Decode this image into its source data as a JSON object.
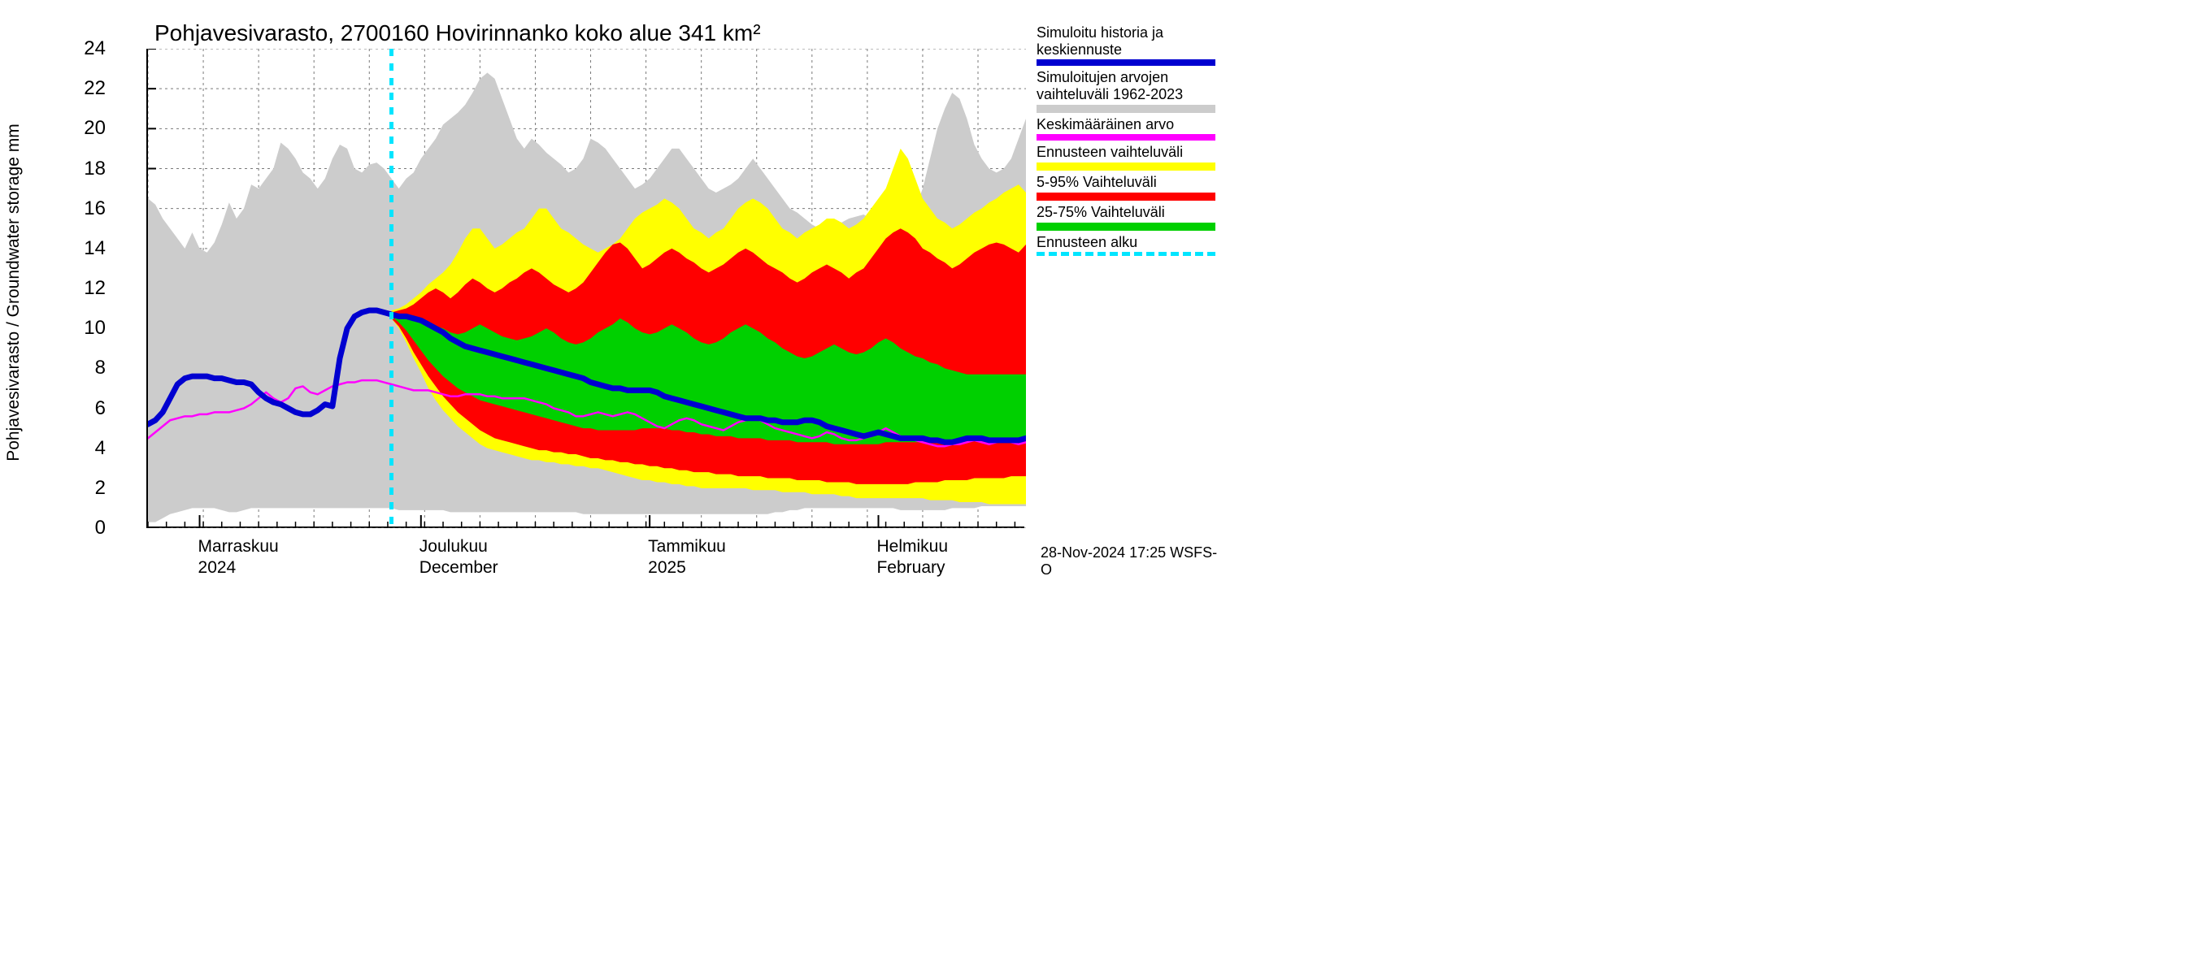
{
  "chart": {
    "type": "line-band",
    "title": "Pohjavesivarasto, 2700160 Hovirinnanko koko alue 341 km²",
    "y_axis_label": "Pohjavesivarasto / Groundwater storage    mm",
    "title_fontsize": 28,
    "label_fontsize": 21,
    "tick_fontsize": 24,
    "background_color": "#ffffff",
    "grid_color": "#7a7a7a",
    "grid_dash": "3,4",
    "y": {
      "min": 0,
      "max": 24,
      "ticks": [
        0,
        2,
        4,
        6,
        8,
        10,
        12,
        14,
        16,
        18,
        20,
        22,
        24
      ]
    },
    "x": {
      "n_days": 120,
      "minor_tick_every": 2.5,
      "major_breaks": [
        7,
        37,
        68,
        99
      ],
      "month_labels": [
        {
          "line1": "Marraskuu",
          "line2": "2024",
          "day": 7
        },
        {
          "line1": "Joulukuu",
          "line2": "December",
          "day": 37
        },
        {
          "line1": "Tammikuu",
          "line2": "2025",
          "day": 68
        },
        {
          "line1": "Helmikuu",
          "line2": "February",
          "day": 99
        }
      ]
    },
    "forecast_start_day": 33,
    "colors": {
      "blue": "#0000d0",
      "gray_band": "#cccccc",
      "magenta": "#ff00ff",
      "yellow": "#ffff00",
      "red": "#ff0000",
      "green": "#00d000",
      "cyan": "#00e5ff"
    },
    "line_widths": {
      "blue": 7,
      "magenta": 2.5,
      "cyan": 5
    },
    "bands": {
      "gray_upper": [
        16.5,
        16.2,
        15.5,
        15,
        14.5,
        14,
        14.8,
        14,
        13.8,
        14.3,
        15.2,
        16.3,
        15.5,
        16,
        17.2,
        17,
        17.5,
        18,
        19.3,
        19,
        18.5,
        17.8,
        17.5,
        17,
        17.5,
        18.5,
        19.2,
        19,
        18,
        17.8,
        18.2,
        18.3,
        18,
        17.5,
        17,
        17.5,
        17.8,
        18.5,
        19,
        19.5,
        20.2,
        20.5,
        20.8,
        21.2,
        21.8,
        22.5,
        22.8,
        22.5,
        21.5,
        20.5,
        19.5,
        19,
        19.5,
        19.2,
        18.8,
        18.5,
        18.2,
        17.8,
        18,
        18.5,
        19.5,
        19.3,
        19,
        18.5,
        18,
        17.5,
        17,
        17.2,
        17.5,
        18,
        18.5,
        19,
        19,
        18.5,
        18,
        17.5,
        17,
        16.8,
        17,
        17.2,
        17.5,
        18,
        18.5,
        18,
        17.5,
        17,
        16.5,
        16,
        15.8,
        15.5,
        15.2,
        15,
        14.8,
        15,
        15.3,
        15.5,
        15.6,
        15.7,
        15.5,
        15.3,
        15.2,
        15,
        15.2,
        15.5,
        16,
        17,
        18.5,
        20,
        21,
        21.8,
        21.5,
        20.5,
        19.2,
        18.5,
        18,
        17.8,
        18,
        18.5,
        19.5,
        20.5
      ],
      "gray_lower": [
        0.3,
        0.3,
        0.5,
        0.7,
        0.8,
        0.9,
        1,
        1,
        1,
        1,
        0.9,
        0.8,
        0.8,
        0.9,
        1,
        1,
        1,
        1,
        1,
        1,
        1,
        1,
        1,
        1,
        1,
        1,
        1,
        1,
        1,
        1,
        1,
        1,
        1,
        1,
        0.9,
        0.9,
        0.9,
        0.9,
        0.9,
        0.9,
        0.9,
        0.8,
        0.8,
        0.8,
        0.8,
        0.8,
        0.8,
        0.8,
        0.8,
        0.8,
        0.8,
        0.8,
        0.8,
        0.8,
        0.8,
        0.8,
        0.8,
        0.8,
        0.8,
        0.7,
        0.7,
        0.7,
        0.7,
        0.7,
        0.7,
        0.7,
        0.7,
        0.7,
        0.7,
        0.7,
        0.7,
        0.7,
        0.7,
        0.7,
        0.7,
        0.7,
        0.7,
        0.7,
        0.7,
        0.7,
        0.7,
        0.7,
        0.7,
        0.7,
        0.7,
        0.8,
        0.8,
        0.9,
        0.9,
        1,
        1,
        1,
        1,
        1,
        1,
        1,
        1,
        1,
        1,
        1,
        1,
        1,
        0.9,
        0.9,
        0.9,
        0.9,
        0.9,
        0.9,
        0.9,
        1,
        1,
        1,
        1,
        1.1,
        1.1,
        1.1,
        1.1,
        1.1,
        1.1,
        1.1
      ],
      "yellow_upper": [
        null,
        null,
        null,
        null,
        null,
        null,
        null,
        null,
        null,
        null,
        null,
        null,
        null,
        null,
        null,
        null,
        null,
        null,
        null,
        null,
        null,
        null,
        null,
        null,
        null,
        null,
        null,
        null,
        null,
        null,
        null,
        null,
        null,
        10.9,
        11,
        11.2,
        11.5,
        11.8,
        12.2,
        12.5,
        12.8,
        13.2,
        13.8,
        14.5,
        15,
        15,
        14.5,
        14,
        14.2,
        14.5,
        14.8,
        15,
        15.5,
        16,
        16,
        15.5,
        15,
        14.8,
        14.5,
        14.2,
        14,
        13.8,
        14,
        14.2,
        14.5,
        15,
        15.5,
        15.8,
        16,
        16.2,
        16.5,
        16.3,
        16,
        15.5,
        15,
        14.8,
        14.5,
        14.8,
        15,
        15.5,
        16,
        16.3,
        16.5,
        16.3,
        16,
        15.5,
        15,
        14.8,
        14.5,
        14.8,
        15,
        15.2,
        15.5,
        15.5,
        15.3,
        15,
        15.2,
        15.5,
        16,
        16.5,
        17,
        18,
        19,
        18.5,
        17.5,
        16.5,
        16,
        15.5,
        15.3,
        15,
        15.2,
        15.5,
        15.8,
        16,
        16.3,
        16.5,
        16.8,
        17,
        17.2,
        16.8
      ],
      "yellow_lower": [
        null,
        null,
        null,
        null,
        null,
        null,
        null,
        null,
        null,
        null,
        null,
        null,
        null,
        null,
        null,
        null,
        null,
        null,
        null,
        null,
        null,
        null,
        null,
        null,
        null,
        null,
        null,
        null,
        null,
        null,
        null,
        null,
        null,
        10.5,
        10,
        9.3,
        8.5,
        7.8,
        7,
        6.4,
        5.9,
        5.5,
        5.1,
        4.8,
        4.5,
        4.2,
        4,
        3.9,
        3.8,
        3.7,
        3.6,
        3.5,
        3.4,
        3.4,
        3.3,
        3.3,
        3.2,
        3.2,
        3.1,
        3.1,
        3,
        3,
        2.9,
        2.8,
        2.7,
        2.6,
        2.5,
        2.4,
        2.4,
        2.3,
        2.3,
        2.2,
        2.2,
        2.1,
        2.1,
        2,
        2,
        2,
        2,
        2,
        2,
        2,
        1.9,
        1.9,
        1.9,
        1.9,
        1.8,
        1.8,
        1.8,
        1.8,
        1.7,
        1.7,
        1.7,
        1.7,
        1.6,
        1.6,
        1.5,
        1.5,
        1.5,
        1.5,
        1.5,
        1.5,
        1.5,
        1.5,
        1.5,
        1.5,
        1.4,
        1.4,
        1.4,
        1.4,
        1.3,
        1.3,
        1.3,
        1.3,
        1.2,
        1.2,
        1.2,
        1.2,
        1.2,
        1.2
      ],
      "red_upper": [
        null,
        null,
        null,
        null,
        null,
        null,
        null,
        null,
        null,
        null,
        null,
        null,
        null,
        null,
        null,
        null,
        null,
        null,
        null,
        null,
        null,
        null,
        null,
        null,
        null,
        null,
        null,
        null,
        null,
        null,
        null,
        null,
        null,
        10.8,
        10.9,
        11,
        11.2,
        11.5,
        11.8,
        12,
        11.8,
        11.5,
        11.8,
        12.2,
        12.5,
        12.3,
        12,
        11.8,
        12,
        12.3,
        12.5,
        12.8,
        13,
        12.8,
        12.5,
        12.2,
        12,
        11.8,
        12,
        12.3,
        12.8,
        13.3,
        13.8,
        14.2,
        14.3,
        14,
        13.5,
        13,
        13.2,
        13.5,
        13.8,
        14,
        13.8,
        13.5,
        13.3,
        13,
        12.8,
        13,
        13.2,
        13.5,
        13.8,
        14,
        13.8,
        13.5,
        13.2,
        13,
        12.8,
        12.5,
        12.3,
        12.5,
        12.8,
        13,
        13.2,
        13,
        12.8,
        12.5,
        12.8,
        13,
        13.5,
        14,
        14.5,
        14.8,
        15,
        14.8,
        14.5,
        14,
        13.8,
        13.5,
        13.3,
        13,
        13.2,
        13.5,
        13.8,
        14,
        14.2,
        14.3,
        14.2,
        14,
        13.8,
        14.2
      ],
      "red_lower": [
        null,
        null,
        null,
        null,
        null,
        null,
        null,
        null,
        null,
        null,
        null,
        null,
        null,
        null,
        null,
        null,
        null,
        null,
        null,
        null,
        null,
        null,
        null,
        null,
        null,
        null,
        null,
        null,
        null,
        null,
        null,
        null,
        null,
        10.5,
        10.1,
        9.5,
        8.8,
        8.2,
        7.6,
        7.1,
        6.6,
        6.2,
        5.8,
        5.5,
        5.2,
        4.9,
        4.7,
        4.5,
        4.4,
        4.3,
        4.2,
        4.1,
        4,
        3.9,
        3.9,
        3.8,
        3.8,
        3.7,
        3.7,
        3.6,
        3.5,
        3.5,
        3.4,
        3.4,
        3.3,
        3.3,
        3.2,
        3.2,
        3.1,
        3.1,
        3,
        3,
        2.9,
        2.9,
        2.8,
        2.8,
        2.8,
        2.7,
        2.7,
        2.7,
        2.6,
        2.6,
        2.6,
        2.6,
        2.5,
        2.5,
        2.5,
        2.5,
        2.4,
        2.4,
        2.4,
        2.4,
        2.3,
        2.3,
        2.3,
        2.3,
        2.2,
        2.2,
        2.2,
        2.2,
        2.2,
        2.2,
        2.2,
        2.2,
        2.3,
        2.3,
        2.3,
        2.3,
        2.4,
        2.4,
        2.4,
        2.4,
        2.5,
        2.5,
        2.5,
        2.5,
        2.5,
        2.6,
        2.6,
        2.6
      ],
      "green_upper": [
        null,
        null,
        null,
        null,
        null,
        null,
        null,
        null,
        null,
        null,
        null,
        null,
        null,
        null,
        null,
        null,
        null,
        null,
        null,
        null,
        null,
        null,
        null,
        null,
        null,
        null,
        null,
        null,
        null,
        null,
        null,
        null,
        null,
        10.7,
        10.6,
        10.5,
        10.4,
        10.3,
        10.2,
        10.1,
        10,
        9.8,
        9.7,
        9.8,
        10,
        10.2,
        10,
        9.8,
        9.6,
        9.5,
        9.4,
        9.5,
        9.6,
        9.8,
        10,
        9.8,
        9.5,
        9.3,
        9.2,
        9.3,
        9.5,
        9.8,
        10,
        10.2,
        10.5,
        10.3,
        10,
        9.8,
        9.7,
        9.8,
        10,
        10.2,
        10,
        9.8,
        9.5,
        9.3,
        9.2,
        9.3,
        9.5,
        9.8,
        10,
        10.2,
        10,
        9.8,
        9.5,
        9.3,
        9,
        8.8,
        8.6,
        8.5,
        8.6,
        8.8,
        9,
        9.2,
        9,
        8.8,
        8.7,
        8.8,
        9,
        9.3,
        9.5,
        9.3,
        9,
        8.8,
        8.6,
        8.5,
        8.3,
        8.2,
        8,
        7.9,
        7.8,
        7.7,
        7.7,
        7.7,
        7.7,
        7.7,
        7.7,
        7.7,
        7.7,
        7.7
      ],
      "green_lower": [
        null,
        null,
        null,
        null,
        null,
        null,
        null,
        null,
        null,
        null,
        null,
        null,
        null,
        null,
        null,
        null,
        null,
        null,
        null,
        null,
        null,
        null,
        null,
        null,
        null,
        null,
        null,
        null,
        null,
        null,
        null,
        null,
        null,
        10.6,
        10.3,
        9.9,
        9.4,
        8.9,
        8.4,
        8,
        7.6,
        7.3,
        7,
        6.8,
        6.6,
        6.4,
        6.3,
        6.2,
        6.1,
        6,
        5.9,
        5.8,
        5.7,
        5.6,
        5.5,
        5.4,
        5.3,
        5.2,
        5.1,
        5,
        5,
        4.9,
        4.9,
        4.9,
        4.9,
        4.9,
        4.9,
        5,
        5,
        5,
        5,
        4.9,
        4.9,
        4.8,
        4.8,
        4.7,
        4.7,
        4.6,
        4.6,
        4.6,
        4.5,
        4.5,
        4.5,
        4.5,
        4.4,
        4.4,
        4.4,
        4.4,
        4.3,
        4.3,
        4.3,
        4.3,
        4.3,
        4.2,
        4.2,
        4.2,
        4.2,
        4.2,
        4.2,
        4.2,
        4.3,
        4.3,
        4.3,
        4.3,
        4.3,
        4.3,
        4.4,
        4.4,
        4.4,
        4.4,
        4.4,
        4.4,
        4.4,
        4.4,
        4.4,
        4.4,
        4.5,
        4.5,
        4.5,
        4.5
      ]
    },
    "lines": {
      "blue": [
        5.2,
        5.4,
        5.8,
        6.5,
        7.2,
        7.5,
        7.6,
        7.6,
        7.6,
        7.5,
        7.5,
        7.4,
        7.3,
        7.3,
        7.2,
        6.8,
        6.5,
        6.3,
        6.2,
        6,
        5.8,
        5.7,
        5.7,
        5.9,
        6.2,
        6.1,
        8.5,
        10,
        10.6,
        10.8,
        10.9,
        10.9,
        10.8,
        10.7,
        10.6,
        10.6,
        10.5,
        10.4,
        10.2,
        10,
        9.8,
        9.5,
        9.3,
        9.1,
        9,
        8.9,
        8.8,
        8.7,
        8.6,
        8.5,
        8.4,
        8.3,
        8.2,
        8.1,
        8,
        7.9,
        7.8,
        7.7,
        7.6,
        7.5,
        7.3,
        7.2,
        7.1,
        7,
        7,
        6.9,
        6.9,
        6.9,
        6.9,
        6.8,
        6.6,
        6.5,
        6.4,
        6.3,
        6.2,
        6.1,
        6,
        5.9,
        5.8,
        5.7,
        5.6,
        5.5,
        5.5,
        5.5,
        5.4,
        5.4,
        5.3,
        5.3,
        5.3,
        5.4,
        5.4,
        5.3,
        5.1,
        5,
        4.9,
        4.8,
        4.7,
        4.6,
        4.7,
        4.8,
        4.7,
        4.6,
        4.5,
        4.5,
        4.5,
        4.5,
        4.4,
        4.4,
        4.3,
        4.3,
        4.4,
        4.5,
        4.5,
        4.5,
        4.4,
        4.4,
        4.4,
        4.4,
        4.4,
        4.5
      ],
      "magenta": [
        4.5,
        4.8,
        5.1,
        5.4,
        5.5,
        5.6,
        5.6,
        5.7,
        5.7,
        5.8,
        5.8,
        5.8,
        5.9,
        6,
        6.2,
        6.5,
        6.8,
        6.5,
        6.3,
        6.5,
        7,
        7.1,
        6.8,
        6.7,
        6.9,
        7.1,
        7.2,
        7.3,
        7.3,
        7.4,
        7.4,
        7.4,
        7.3,
        7.2,
        7.1,
        7,
        6.9,
        6.9,
        6.9,
        6.8,
        6.7,
        6.6,
        6.6,
        6.7,
        6.7,
        6.7,
        6.6,
        6.6,
        6.5,
        6.5,
        6.5,
        6.5,
        6.4,
        6.3,
        6.2,
        6,
        5.9,
        5.8,
        5.6,
        5.6,
        5.7,
        5.8,
        5.7,
        5.6,
        5.7,
        5.8,
        5.7,
        5.5,
        5.3,
        5.1,
        5,
        5.2,
        5.4,
        5.5,
        5.4,
        5.2,
        5.1,
        5,
        4.9,
        5.1,
        5.3,
        5.4,
        5.5,
        5.4,
        5.2,
        5,
        4.9,
        4.8,
        4.7,
        4.6,
        4.5,
        4.6,
        4.8,
        4.7,
        4.5,
        4.4,
        4.4,
        4.5,
        4.6,
        4.8,
        5,
        4.8,
        4.6,
        4.5,
        4.4,
        4.3,
        4.2,
        4.1,
        4.1,
        4.2,
        4.2,
        4.3,
        4.4,
        4.3,
        4.2,
        4.3,
        4.4,
        4.3,
        4.2,
        4.3
      ]
    }
  },
  "legend": {
    "entries": [
      {
        "label": "Simuloitu historia ja keskiennuste",
        "color": "#0000d0",
        "kind": "line"
      },
      {
        "label": "Simuloitujen arvojen vaihteluväli 1962-2023",
        "color": "#cccccc",
        "kind": "band"
      },
      {
        "label": "Keskimääräinen arvo",
        "color": "#ff00ff",
        "kind": "line"
      },
      {
        "label": "Ennusteen vaihteluväli",
        "color": "#ffff00",
        "kind": "band"
      },
      {
        "label": "5-95% Vaihteluväli",
        "color": "#ff0000",
        "kind": "band"
      },
      {
        "label": "25-75% Vaihteluväli",
        "color": "#00d000",
        "kind": "band"
      },
      {
        "label": "Ennusteen alku",
        "color": "#00e5ff",
        "kind": "dash"
      }
    ]
  },
  "footer": {
    "timestamp": "28-Nov-2024 17:25 WSFS-O"
  }
}
